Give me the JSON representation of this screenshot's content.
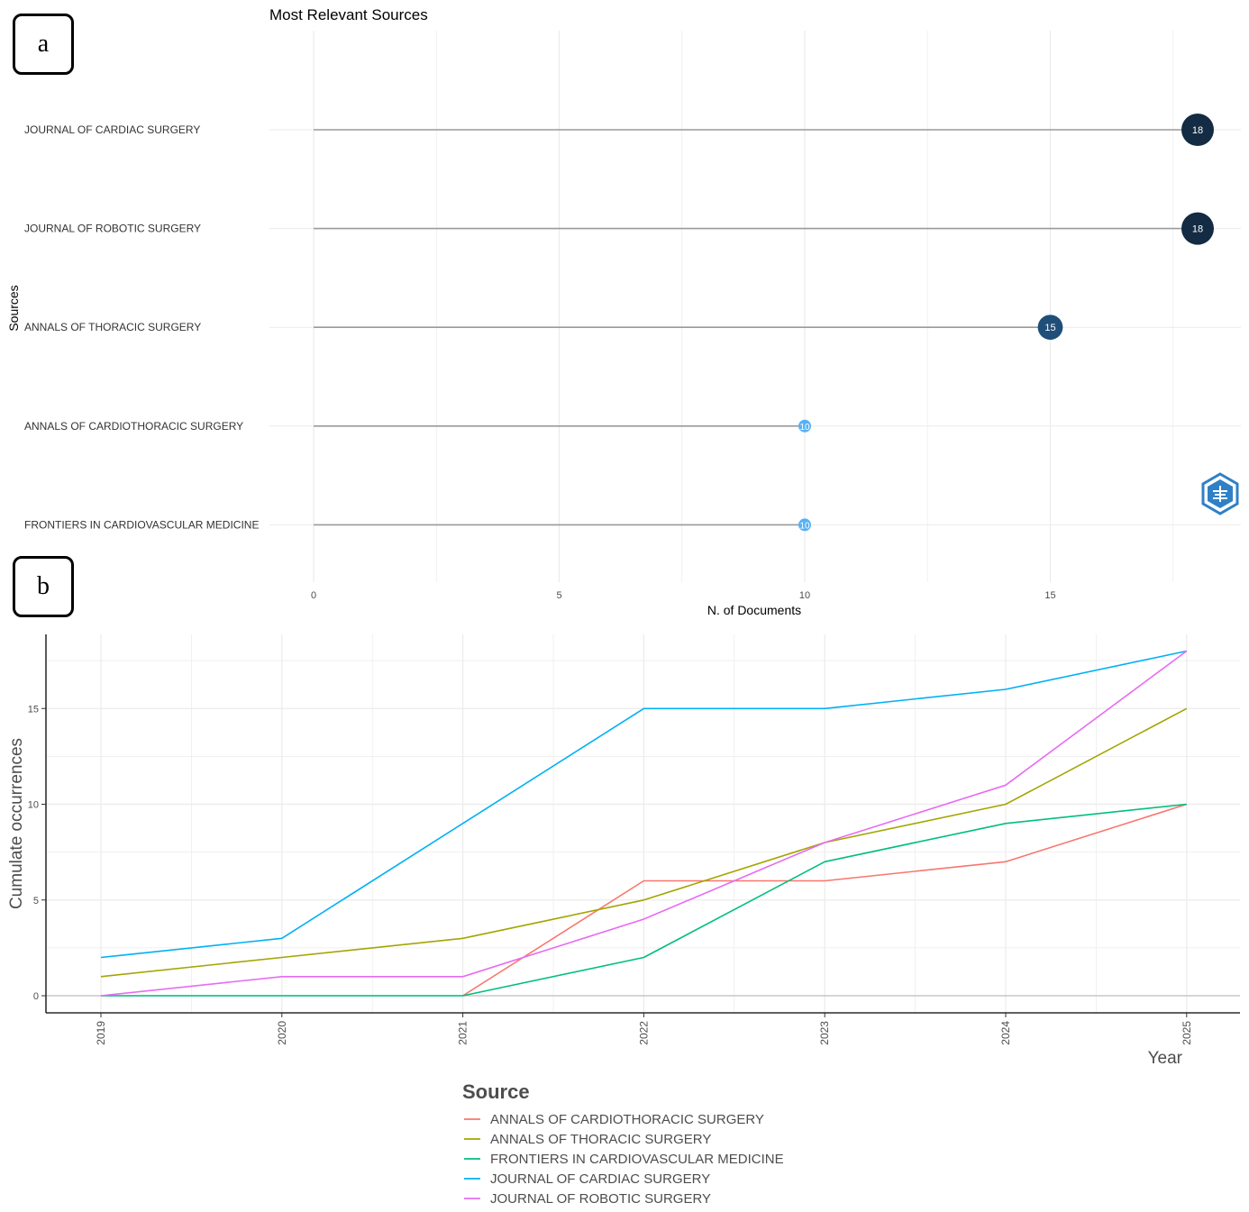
{
  "panels": {
    "a": {
      "label": "a"
    },
    "b": {
      "label": "b"
    }
  },
  "colors": {
    "lollipop_dark": "#132b43",
    "lollipop_mid": "#1f4e79",
    "lollipop_light": "#56b1f7",
    "stem": "#9a9a9a",
    "grid": "#ebebeb",
    "logo": "#2f80c7"
  },
  "chart_data": [
    {
      "type": "lollipop",
      "title": "Most Relevant Sources",
      "xlabel": "N. of Documents",
      "ylabel": "Sources",
      "categories": [
        "JOURNAL OF CARDIAC SURGERY",
        "JOURNAL OF ROBOTIC SURGERY",
        "ANNALS OF THORACIC SURGERY",
        "ANNALS OF CARDIOTHORACIC SURGERY",
        "FRONTIERS IN CARDIOVASCULAR MEDICINE"
      ],
      "values": [
        18,
        18,
        15,
        10,
        10
      ],
      "xticks": [
        0,
        5,
        10,
        15
      ],
      "xlim": [
        -0.9,
        18.9
      ],
      "grid": true
    },
    {
      "type": "line",
      "xlabel": "Year",
      "ylabel": "Cumulate occurrences",
      "legend_title": "Source",
      "legend_position": "bottom",
      "x": [
        "2019",
        "2020",
        "2021",
        "2022",
        "2023",
        "2024",
        "2025"
      ],
      "yticks": [
        0,
        5,
        10,
        15
      ],
      "ylim": [
        -0.9,
        18.9
      ],
      "grid": true,
      "series": [
        {
          "name": "ANNALS OF CARDIOTHORACIC SURGERY",
          "color": "#f8766d",
          "values": [
            null,
            null,
            0,
            6,
            6,
            7,
            10
          ]
        },
        {
          "name": "ANNALS OF THORACIC SURGERY",
          "color": "#a3a500",
          "values": [
            1,
            2,
            3,
            5,
            8,
            10,
            15
          ]
        },
        {
          "name": "FRONTIERS IN CARDIOVASCULAR MEDICINE",
          "color": "#00bf7d",
          "values": [
            0,
            0,
            0,
            2,
            7,
            9,
            10
          ]
        },
        {
          "name": "JOURNAL OF CARDIAC SURGERY",
          "color": "#00b0f6",
          "values": [
            2,
            3,
            9,
            15,
            15,
            16,
            18
          ]
        },
        {
          "name": "JOURNAL OF ROBOTIC SURGERY",
          "color": "#e76bf3",
          "values": [
            0,
            1,
            1,
            4,
            8,
            11,
            18
          ]
        }
      ]
    }
  ]
}
